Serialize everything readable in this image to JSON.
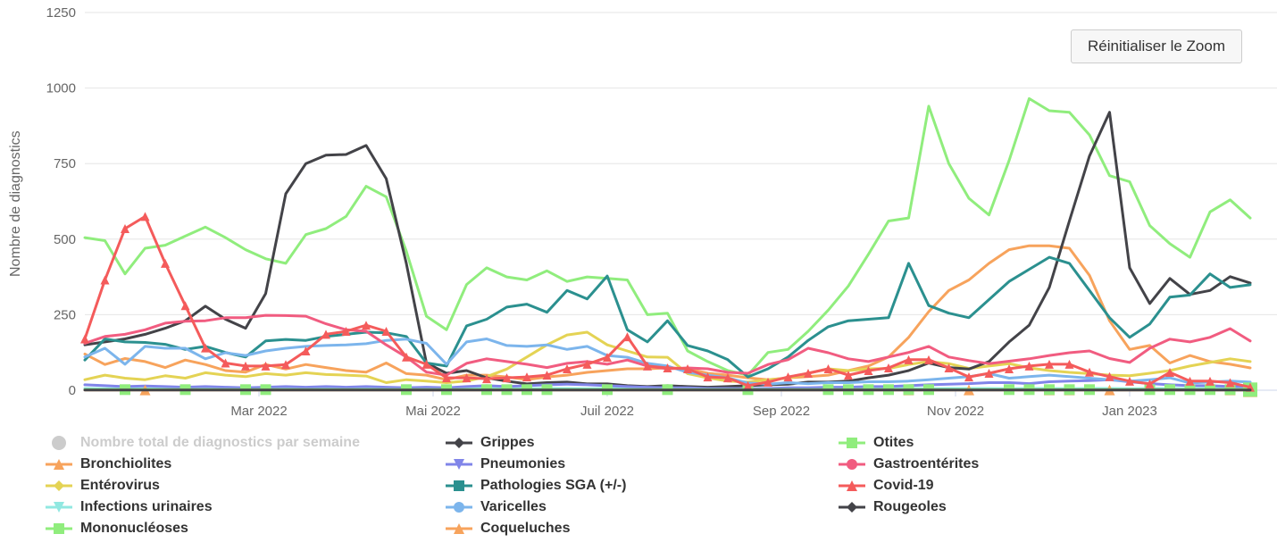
{
  "ui": {
    "reset_zoom_label": "Réinitialiser le Zoom"
  },
  "colors": {
    "background": "#ffffff",
    "grid": "#e6e6e6",
    "axis_line": "#ccd6eb",
    "axis_text": "#666666",
    "legend_text": "#333333",
    "legend_disabled": "#cccccc"
  },
  "chart_data": {
    "type": "line",
    "title": "",
    "xlabel": "",
    "ylabel": "Nombre de diagnostics",
    "ylim": [
      0,
      1250
    ],
    "yticks": [
      0,
      250,
      500,
      750,
      1000,
      1250
    ],
    "x_unit": "week",
    "n_points": 59,
    "xticklabels": [
      "Mar 2022",
      "Mai 2022",
      "Juil 2022",
      "Sep 2022",
      "Nov 2022",
      "Jan 2023"
    ],
    "grid": true,
    "legend_position": "bottom",
    "legend_columns": [
      [
        0,
        1,
        2,
        3,
        4
      ],
      [
        5,
        6,
        7,
        8,
        9
      ],
      [
        10,
        11,
        12,
        13
      ]
    ],
    "series": [
      {
        "label": "Nombre total de diagnostics par semaine",
        "color": "#cccccc",
        "symbol": "circle",
        "visible": false,
        "markers": "none",
        "values": []
      },
      {
        "label": "Bronchiolites",
        "color": "#f7a35c",
        "symbol": "triangle",
        "visible": true,
        "markers": "none",
        "values": [
          120,
          85,
          105,
          95,
          75,
          100,
          85,
          65,
          60,
          85,
          70,
          85,
          75,
          65,
          60,
          90,
          55,
          50,
          35,
          50,
          50,
          44,
          35,
          44,
          50,
          59,
          65,
          71,
          71,
          74,
          71,
          56,
          50,
          41,
          35,
          41,
          45,
          50,
          65,
          80,
          110,
          175,
          260,
          330,
          365,
          420,
          465,
          478,
          478,
          470,
          380,
          230,
          135,
          148,
          90,
          115,
          95,
          86,
          74
        ]
      },
      {
        "label": "Entérovirus",
        "color": "#e4d354",
        "symbol": "diamond",
        "visible": true,
        "markers": "none",
        "values": [
          35,
          50,
          40,
          35,
          48,
          40,
          58,
          50,
          45,
          55,
          50,
          58,
          52,
          50,
          47,
          25,
          35,
          30,
          25,
          30,
          45,
          70,
          110,
          150,
          183,
          192,
          150,
          130,
          110,
          109,
          55,
          41,
          30,
          27,
          35,
          40,
          56,
          71,
          65,
          71,
          72,
          85,
          95,
          88,
          72,
          80,
          88,
          74,
          65,
          59,
          55,
          50,
          48,
          56,
          65,
          80,
          92,
          104,
          95
        ]
      },
      {
        "label": "Infections urinaires",
        "color": "#91e8e1",
        "symbol": "triangle-down",
        "visible": true,
        "markers": "none",
        "values": [
          6,
          5,
          6,
          5,
          6,
          6,
          5,
          6,
          5,
          6,
          6,
          5,
          6,
          6,
          5,
          6,
          6,
          5,
          5,
          6,
          6,
          6,
          5,
          6,
          6,
          5,
          6,
          6,
          5,
          5,
          6,
          5,
          5,
          4,
          5,
          5,
          6,
          6,
          5,
          6,
          6,
          6,
          5,
          6,
          6,
          6,
          5,
          6,
          6,
          5,
          6,
          6,
          5,
          6,
          6,
          5,
          6,
          6,
          5
        ]
      },
      {
        "label": "Mononucléoses",
        "color": "#90ed7d",
        "symbol": "square",
        "visible": true,
        "markers": "none",
        "values": [
          505,
          495,
          385,
          470,
          480,
          510,
          540,
          505,
          465,
          435,
          420,
          515,
          535,
          575,
          675,
          640,
          460,
          245,
          200,
          350,
          405,
          375,
          365,
          395,
          360,
          375,
          370,
          365,
          250,
          255,
          130,
          95,
          65,
          50,
          125,
          135,
          195,
          265,
          345,
          450,
          560,
          570,
          940,
          750,
          635,
          580,
          760,
          965,
          925,
          920,
          845,
          710,
          690,
          545,
          485,
          440,
          590,
          630,
          570
        ]
      },
      {
        "label": "Grippes",
        "color": "#434348",
        "symbol": "diamond",
        "visible": true,
        "markers": "none",
        "values": [
          150,
          160,
          170,
          185,
          205,
          230,
          278,
          235,
          205,
          320,
          650,
          750,
          778,
          780,
          810,
          700,
          420,
          90,
          56,
          65,
          41,
          30,
          21,
          25,
          27,
          21,
          21,
          15,
          12,
          15,
          12,
          10,
          12,
          15,
          18,
          20,
          27,
          27,
          30,
          41,
          50,
          65,
          90,
          75,
          70,
          95,
          160,
          215,
          340,
          560,
          775,
          920,
          405,
          287,
          370,
          317,
          330,
          376,
          355
        ]
      },
      {
        "label": "Pneumonies",
        "color": "#8085e9",
        "symbol": "triangle-down",
        "visible": true,
        "markers": "none",
        "values": [
          18,
          15,
          12,
          14,
          12,
          10,
          12,
          10,
          8,
          10,
          12,
          10,
          12,
          10,
          12,
          10,
          8,
          10,
          8,
          12,
          15,
          12,
          15,
          18,
          20,
          18,
          15,
          12,
          10,
          8,
          8,
          6,
          6,
          5,
          6,
          8,
          8,
          10,
          10,
          12,
          12,
          15,
          18,
          20,
          22,
          25,
          25,
          22,
          28,
          30,
          32,
          35,
          28,
          22,
          18,
          15,
          15,
          12,
          12
        ]
      },
      {
        "label": "Pathologies SGA (+/-)",
        "color": "#2b908f",
        "symbol": "square",
        "visible": true,
        "markers": "none",
        "values": [
          100,
          170,
          160,
          158,
          152,
          135,
          145,
          125,
          110,
          163,
          168,
          165,
          178,
          185,
          192,
          190,
          178,
          90,
          80,
          213,
          235,
          275,
          285,
          258,
          330,
          302,
          378,
          200,
          160,
          230,
          148,
          130,
          101,
          44,
          71,
          110,
          165,
          210,
          230,
          235,
          240,
          420,
          280,
          255,
          240,
          300,
          360,
          400,
          440,
          420,
          330,
          240,
          175,
          219,
          308,
          315,
          385,
          340,
          349
        ]
      },
      {
        "label": "Varicelles",
        "color": "#7cb5ec",
        "symbol": "circle",
        "visible": true,
        "markers": "none",
        "values": [
          110,
          139,
          86,
          145,
          139,
          139,
          104,
          124,
          115,
          130,
          139,
          145,
          148,
          150,
          154,
          165,
          169,
          155,
          86,
          160,
          170,
          148,
          145,
          150,
          135,
          145,
          115,
          109,
          89,
          80,
          59,
          50,
          41,
          24,
          20,
          25,
          22,
          25,
          25,
          28,
          28,
          30,
          35,
          40,
          45,
          55,
          40,
          45,
          50,
          45,
          40,
          35,
          30,
          35,
          41,
          24,
          27,
          30,
          27
        ]
      },
      {
        "label": "Coqueluches",
        "color": "#f7a35c",
        "symbol": "triangle",
        "visible": true,
        "markers": "weeks",
        "marker_weeks": [
          3,
          41,
          44,
          48,
          49,
          51,
          57,
          58
        ],
        "values": [
          1,
          1,
          1,
          1,
          1,
          1,
          1,
          1,
          1,
          1,
          1,
          1,
          1,
          1,
          1,
          1,
          1,
          1,
          1,
          1,
          1,
          1,
          1,
          1,
          1,
          1,
          1,
          1,
          1,
          1,
          1,
          1,
          1,
          1,
          1,
          1,
          1,
          1,
          1,
          1,
          1,
          1,
          1,
          1,
          1,
          1,
          1,
          1,
          1,
          1,
          1,
          1,
          1,
          1,
          1,
          1,
          1,
          1,
          1
        ]
      },
      {
        "label": "Otites",
        "color": "#90ed7d",
        "symbol": "square",
        "visible": true,
        "markers": "weeks",
        "marker_weeks": [
          2,
          5,
          8,
          9,
          16,
          18,
          20,
          21,
          22,
          23,
          26,
          29,
          33,
          37,
          38,
          39,
          40,
          41,
          42,
          46,
          47,
          48,
          49,
          50,
          53,
          54,
          55,
          56,
          57,
          58
        ],
        "values": [
          2,
          2,
          2,
          2,
          2,
          2,
          2,
          2,
          2,
          2,
          2,
          2,
          2,
          2,
          2,
          2,
          2,
          2,
          2,
          2,
          2,
          2,
          2,
          2,
          2,
          2,
          2,
          2,
          2,
          2,
          2,
          2,
          2,
          2,
          2,
          2,
          2,
          2,
          2,
          2,
          2,
          2,
          2,
          2,
          2,
          2,
          2,
          2,
          2,
          2,
          2,
          2,
          2,
          2,
          2,
          2,
          2,
          2,
          2
        ]
      },
      {
        "label": "Gastroentérites",
        "color": "#f15c80",
        "symbol": "circle",
        "visible": true,
        "markers": "none",
        "values": [
          155,
          178,
          185,
          200,
          222,
          228,
          230,
          240,
          240,
          248,
          247,
          245,
          220,
          200,
          195,
          150,
          110,
          60,
          50,
          89,
          104,
          95,
          86,
          75,
          89,
          95,
          86,
          100,
          80,
          71,
          74,
          71,
          59,
          56,
          85,
          101,
          139,
          124,
          104,
          95,
          110,
          125,
          145,
          110,
          98,
          88,
          96,
          104,
          115,
          124,
          130,
          105,
          92,
          139,
          169,
          160,
          175,
          204,
          163
        ]
      },
      {
        "label": "Covid-19",
        "color": "#f45b5b",
        "symbol": "triangle",
        "visible": true,
        "markers": "all",
        "values": [
          170,
          365,
          535,
          575,
          420,
          280,
          140,
          90,
          80,
          80,
          85,
          130,
          185,
          195,
          215,
          195,
          110,
          86,
          41,
          41,
          38,
          41,
          44,
          50,
          71,
          86,
          109,
          177,
          80,
          74,
          71,
          44,
          41,
          15,
          27,
          44,
          56,
          71,
          50,
          65,
          74,
          101,
          101,
          74,
          44,
          56,
          71,
          80,
          86,
          86,
          60,
          45,
          30,
          21,
          59,
          30,
          30,
          25,
          10
        ]
      },
      {
        "label": "Rougeoles",
        "color": "#434348",
        "symbol": "diamond",
        "visible": true,
        "markers": "none",
        "values": [
          1,
          1,
          1,
          1,
          1,
          1,
          1,
          1,
          1,
          1,
          1,
          1,
          1,
          1,
          1,
          1,
          1,
          1,
          1,
          1,
          1,
          1,
          1,
          1,
          1,
          1,
          1,
          1,
          1,
          1,
          1,
          1,
          1,
          1,
          1,
          1,
          1,
          1,
          1,
          1,
          1,
          1,
          1,
          1,
          1,
          1,
          1,
          1,
          1,
          1,
          1,
          1,
          1,
          1,
          1,
          1,
          1,
          1,
          1
        ]
      }
    ]
  }
}
